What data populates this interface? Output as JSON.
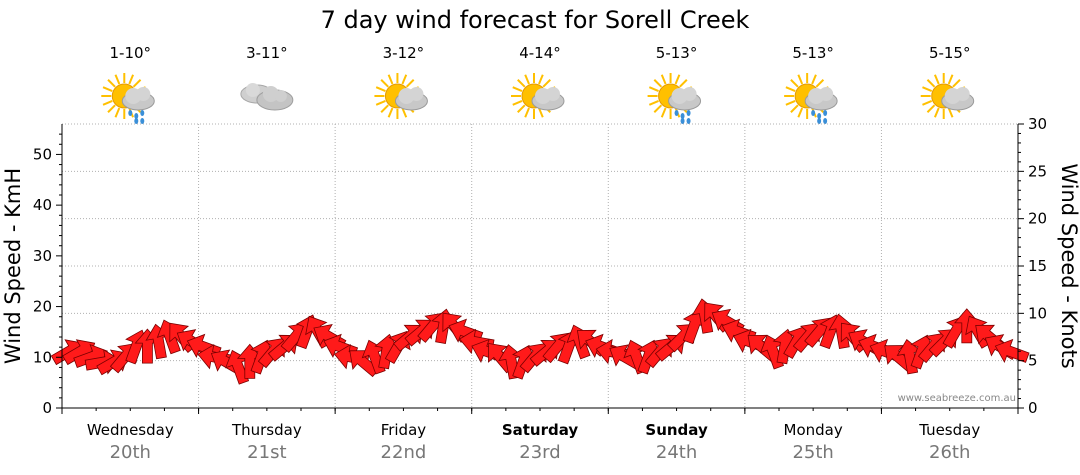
{
  "title": "7 day wind forecast for Sorell Creek",
  "y_left_label": "Wind Speed - KmH",
  "y_right_label": "Wind Speed - Knots",
  "watermark": "www.seabreeze.com.au",
  "days": [
    {
      "name": "Wednesday",
      "date": "20th",
      "temp": "1-10°",
      "icon": "sun-cloud-rain-icon",
      "bold": false
    },
    {
      "name": "Thursday",
      "date": "21st",
      "temp": "3-11°",
      "icon": "cloud-icon",
      "bold": false
    },
    {
      "name": "Friday",
      "date": "22nd",
      "temp": "3-12°",
      "icon": "sun-cloud-icon",
      "bold": false
    },
    {
      "name": "Saturday",
      "date": "23rd",
      "temp": "4-14°",
      "icon": "sun-cloud-icon",
      "bold": true
    },
    {
      "name": "Sunday",
      "date": "24th",
      "temp": "5-13°",
      "icon": "sun-cloud-rain-icon",
      "bold": true
    },
    {
      "name": "Monday",
      "date": "25th",
      "temp": "5-13°",
      "icon": "sun-cloud-rain-icon",
      "bold": false
    },
    {
      "name": "Tuesday",
      "date": "26th",
      "temp": "5-15°",
      "icon": "sun-cloud-icon",
      "bold": false
    }
  ],
  "colors": {
    "arrow": "#ff1a1a",
    "arrow_stroke": "#7a0000",
    "grid": "#b0b0b0",
    "sun": "#ffc000",
    "cloud": "#b8b8b8",
    "rain": "#3a8fd8",
    "date": "#777777"
  },
  "chart_data": {
    "type": "line",
    "title": "7 day wind forecast for Sorell Creek",
    "ylabel": "Wind Speed - KmH",
    "y2label": "Wind Speed - Knots",
    "ylim": [
      0,
      56
    ],
    "y2lim": [
      0,
      30
    ],
    "yticks": [
      0,
      10,
      20,
      30,
      40,
      50
    ],
    "y2ticks": [
      0,
      5,
      10,
      15,
      20,
      25,
      30
    ],
    "categories": [
      "Wednesday 20th",
      "Thursday 21st",
      "Friday 22nd",
      "Saturday 23rd",
      "Sunday 24th",
      "Monday 25th",
      "Tuesday 26th"
    ],
    "series": [
      {
        "points_per_day": 12,
        "speed_kmh": [
          11,
          11,
          10,
          9,
          9,
          10,
          12,
          12,
          13,
          14,
          14,
          13,
          12,
          10,
          9,
          8,
          9,
          10,
          11,
          12,
          14,
          15,
          15,
          14,
          12,
          10,
          9,
          10,
          11,
          12,
          14,
          15,
          16,
          16,
          16,
          15,
          13,
          11,
          10,
          9,
          9,
          10,
          11,
          12,
          12,
          13,
          13,
          12,
          11,
          10,
          10,
          10,
          11,
          12,
          14,
          16,
          18,
          18,
          17,
          15,
          13,
          12,
          11,
          12,
          13,
          14,
          15,
          15,
          15,
          14,
          13,
          12,
          11,
          10,
          10,
          11,
          12,
          13,
          15,
          16,
          15,
          14,
          12,
          11
        ],
        "direction_deg": [
          240,
          240,
          250,
          260,
          240,
          220,
          200,
          180,
          170,
          160,
          140,
          120,
          110,
          100,
          120,
          160,
          180,
          200,
          220,
          230,
          220,
          200,
          150,
          120,
          110,
          100,
          130,
          160,
          190,
          210,
          230,
          230,
          220,
          190,
          140,
          110,
          100,
          110,
          140,
          170,
          200,
          220,
          230,
          220,
          200,
          160,
          130,
          110,
          100,
          120,
          160,
          200,
          220,
          230,
          225,
          200,
          170,
          140,
          120,
          110,
          110,
          130,
          160,
          190,
          210,
          220,
          220,
          200,
          170,
          140,
          120,
          110,
          110,
          130,
          170,
          200,
          220,
          225,
          210,
          180,
          150,
          130,
          120,
          110
        ]
      }
    ],
    "grid": true
  }
}
